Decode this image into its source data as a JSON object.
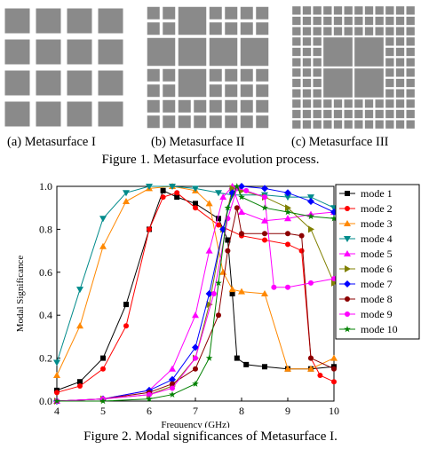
{
  "figure1": {
    "subcaptions": [
      "(a) Metasurface I",
      "(b) Metasurface II",
      "(c) Metasurface III"
    ],
    "caption": "Figure 1.  Metasurface evolution process."
  },
  "figure2": {
    "caption": "Figure 2.  Modal significances of Metasurface I."
  },
  "colors": {
    "cell": "#8a8a8a",
    "gap": "#ffffff"
  },
  "chart_data": {
    "type": "line",
    "title": "",
    "xlabel": "Frequency (GHz)",
    "ylabel": "Modal Significance",
    "xlim": [
      4,
      10
    ],
    "ylim": [
      0,
      1.0
    ],
    "xticks": [
      4,
      5,
      6,
      7,
      8,
      9,
      10
    ],
    "yticks": [
      0.0,
      0.2,
      0.4,
      0.6,
      0.8,
      1.0
    ],
    "legend_position": "right",
    "series": [
      {
        "name": "mode 1",
        "color": "#000000",
        "marker": "square",
        "x": [
          4,
          4.5,
          5,
          5.5,
          6,
          6.3,
          6.6,
          7,
          7.5,
          7.7,
          7.8,
          7.9,
          8.1,
          8.5,
          9,
          9.5,
          10
        ],
        "y": [
          0.05,
          0.09,
          0.2,
          0.45,
          0.8,
          0.98,
          0.95,
          0.92,
          0.85,
          0.75,
          0.5,
          0.2,
          0.17,
          0.16,
          0.15,
          0.15,
          0.16
        ]
      },
      {
        "name": "mode 2",
        "color": "#ff0000",
        "marker": "circle",
        "x": [
          4,
          4.5,
          5,
          5.5,
          6,
          6.3,
          6.6,
          7,
          7.5,
          8,
          8.5,
          9,
          9.3,
          9.5,
          9.7,
          10
        ],
        "y": [
          0.04,
          0.07,
          0.15,
          0.35,
          0.8,
          0.95,
          0.97,
          0.9,
          0.82,
          0.77,
          0.75,
          0.73,
          0.7,
          0.2,
          0.12,
          0.09
        ]
      },
      {
        "name": "mode 3",
        "color": "#ff8800",
        "marker": "triangle-up",
        "x": [
          4,
          4.5,
          5,
          5.5,
          6,
          6.5,
          7,
          7.3,
          7.6,
          7.8,
          8,
          8.5,
          9,
          9.5,
          10
        ],
        "y": [
          0.12,
          0.35,
          0.72,
          0.93,
          0.99,
          1.0,
          0.98,
          0.92,
          0.6,
          0.52,
          0.51,
          0.5,
          0.15,
          0.15,
          0.2
        ]
      },
      {
        "name": "mode 4",
        "color": "#008b8b",
        "marker": "triangle-down",
        "x": [
          4,
          4.5,
          5,
          5.5,
          6,
          6.5,
          7,
          7.5,
          7.8,
          8.5,
          9,
          9.5,
          10
        ],
        "y": [
          0.18,
          0.52,
          0.85,
          0.97,
          1.0,
          1.0,
          0.99,
          0.97,
          0.96,
          0.96,
          0.95,
          0.95,
          0.9
        ]
      },
      {
        "name": "mode 5",
        "color": "#ff00ff",
        "marker": "triangle-up",
        "x": [
          4,
          5,
          6,
          6.5,
          7,
          7.3,
          7.6,
          7.8,
          8,
          8.5,
          9,
          9.5,
          10
        ],
        "y": [
          0.0,
          0.01,
          0.05,
          0.15,
          0.4,
          0.7,
          0.95,
          1.0,
          0.88,
          0.84,
          0.85,
          0.87,
          0.88
        ]
      },
      {
        "name": "mode 6",
        "color": "#808000",
        "marker": "triangle-right",
        "x": [
          4,
          5,
          6,
          6.5,
          7,
          7.3,
          7.6,
          7.8,
          8,
          8.5,
          9,
          9.5,
          10
        ],
        "y": [
          0.0,
          0.01,
          0.03,
          0.07,
          0.2,
          0.45,
          0.8,
          0.99,
          0.98,
          0.95,
          0.9,
          0.8,
          0.55
        ]
      },
      {
        "name": "mode 7",
        "color": "#0000ff",
        "marker": "diamond",
        "x": [
          4,
          5,
          6,
          6.5,
          7,
          7.3,
          7.6,
          7.8,
          8,
          8.5,
          9,
          9.5,
          10
        ],
        "y": [
          0.0,
          0.01,
          0.05,
          0.1,
          0.25,
          0.5,
          0.8,
          0.97,
          1.0,
          0.99,
          0.97,
          0.93,
          0.88
        ]
      },
      {
        "name": "mode 8",
        "color": "#8b0000",
        "marker": "circle",
        "x": [
          4,
          5,
          6,
          6.5,
          7,
          7.5,
          7.7,
          7.9,
          8,
          8.5,
          9,
          9.3,
          9.5,
          10
        ],
        "y": [
          0.0,
          0.01,
          0.04,
          0.08,
          0.15,
          0.4,
          0.7,
          0.9,
          0.78,
          0.78,
          0.78,
          0.77,
          0.2,
          0.15
        ]
      },
      {
        "name": "mode 9",
        "color": "#ff00ff",
        "marker": "circle",
        "x": [
          4,
          5,
          6,
          6.5,
          7,
          7.4,
          7.7,
          7.9,
          8.1,
          8.5,
          8.7,
          9,
          9.5,
          10
        ],
        "y": [
          0.0,
          0.01,
          0.03,
          0.06,
          0.2,
          0.5,
          0.85,
          0.99,
          0.98,
          0.95,
          0.53,
          0.53,
          0.55,
          0.57
        ]
      },
      {
        "name": "mode 10",
        "color": "#008000",
        "marker": "star",
        "x": [
          4,
          5,
          6,
          6.5,
          7,
          7.3,
          7.5,
          7.7,
          7.9,
          8,
          8.5,
          9,
          9.5,
          10
        ],
        "y": [
          0.0,
          0.0,
          0.01,
          0.03,
          0.08,
          0.2,
          0.55,
          0.9,
          1.0,
          0.95,
          0.9,
          0.88,
          0.86,
          0.85
        ]
      }
    ]
  }
}
